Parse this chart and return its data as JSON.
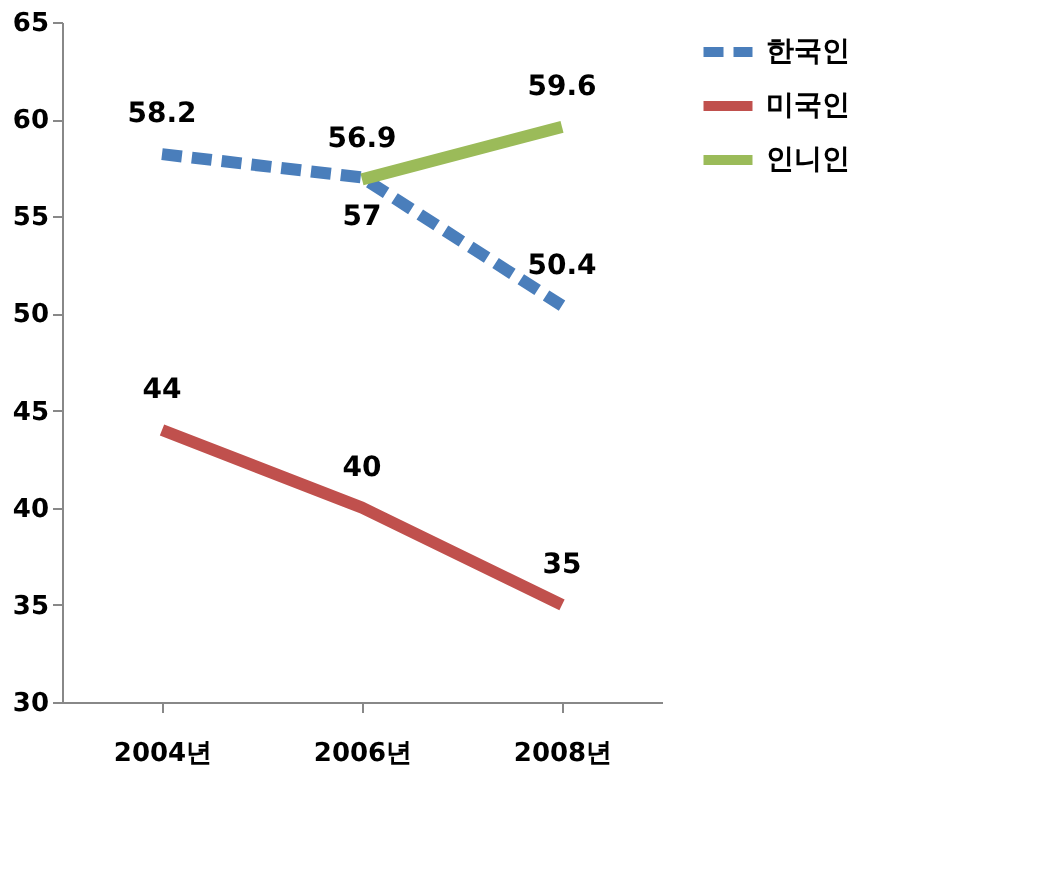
{
  "chart_data": {
    "type": "line",
    "categories": [
      "2004년",
      "2006년",
      "2008년"
    ],
    "series": [
      {
        "name": "한국인",
        "color": "#4a7ebb",
        "values": [
          58.2,
          57,
          50.4
        ],
        "line_style": "dashed"
      },
      {
        "name": "미국인",
        "color": "#c0504d",
        "values": [
          44,
          40,
          35
        ],
        "line_style": "solid"
      },
      {
        "name": "인니인",
        "color": "#9bbb59",
        "values": [
          null,
          56.9,
          59.6
        ],
        "line_style": "solid"
      }
    ],
    "ylim": [
      30,
      65
    ],
    "yticks": [
      30,
      35,
      40,
      45,
      50,
      55,
      60,
      65
    ],
    "grid": false,
    "legend": "right",
    "data_labels": true,
    "marker": "none"
  }
}
